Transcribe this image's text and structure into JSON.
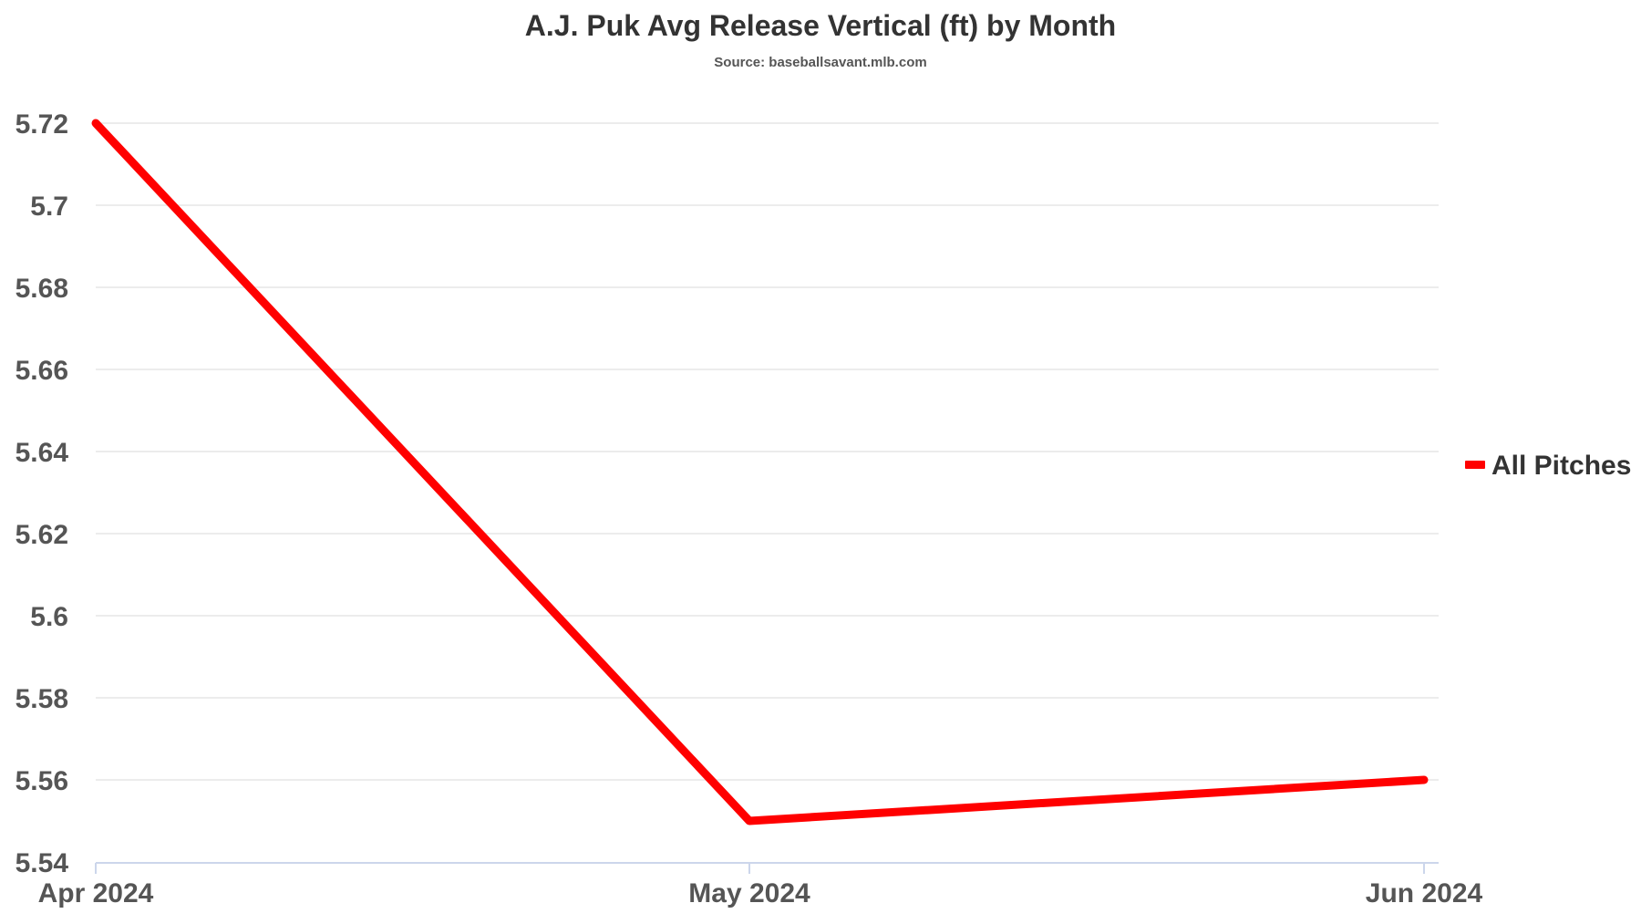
{
  "chart_data": {
    "type": "line",
    "title": "A.J. Puk Avg Release Vertical (ft) by Month",
    "subtitle": "Source: baseballsavant.mlb.com",
    "xlabel": "",
    "ylabel": "",
    "categories": [
      "Apr 2024",
      "May 2024",
      "Jun 2024"
    ],
    "series": [
      {
        "name": "All Pitches",
        "color": "#ff0000",
        "values": [
          5.72,
          5.55,
          5.56
        ]
      }
    ],
    "ylim": [
      5.54,
      5.72
    ],
    "yticks": [
      5.54,
      5.56,
      5.58,
      5.6,
      5.62,
      5.64,
      5.66,
      5.68,
      5.7,
      5.72
    ],
    "grid": true,
    "legend_position": "right"
  }
}
